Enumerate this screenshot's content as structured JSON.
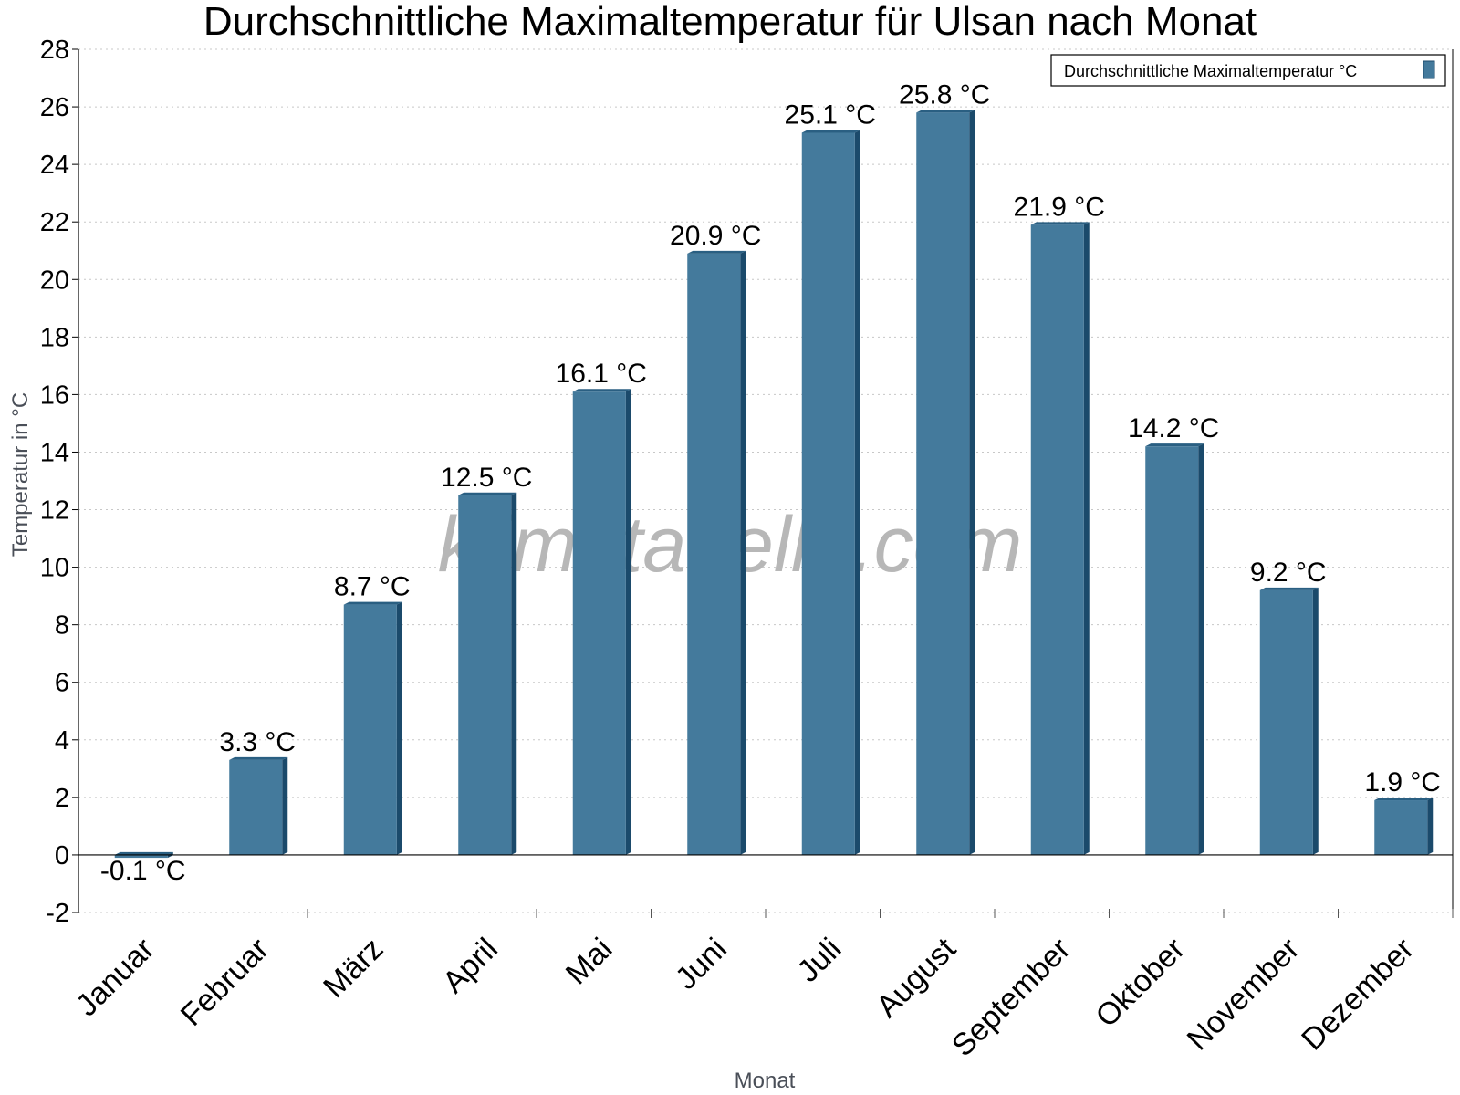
{
  "chart_data": {
    "type": "bar",
    "title": "Durchschnittliche Maximaltemperatur für Ulsan nach Monat",
    "xlabel": "Monat",
    "ylabel": "Temperatur in °C",
    "ylim": [
      -2,
      28
    ],
    "ytick_step": 2,
    "grid": true,
    "legend_position": "top-right",
    "watermark": "klimatabelle.com",
    "unit_suffix": " °C",
    "categories": [
      "Januar",
      "Februar",
      "März",
      "April",
      "Mai",
      "Juni",
      "Juli",
      "August",
      "September",
      "Oktober",
      "November",
      "Dezember"
    ],
    "series": [
      {
        "name": "Durchschnittliche Maximaltemperatur °C",
        "color": "#447a9c",
        "values": [
          -0.1,
          3.3,
          8.7,
          12.5,
          16.1,
          20.9,
          25.1,
          25.8,
          21.9,
          14.2,
          9.2,
          1.9
        ]
      }
    ]
  },
  "colors": {
    "bar_face": "#447a9c",
    "bar_side": "#1b4a6b",
    "bar_top": "#2a5f82",
    "grid": "#c8c8c8",
    "axis": "#000000"
  }
}
